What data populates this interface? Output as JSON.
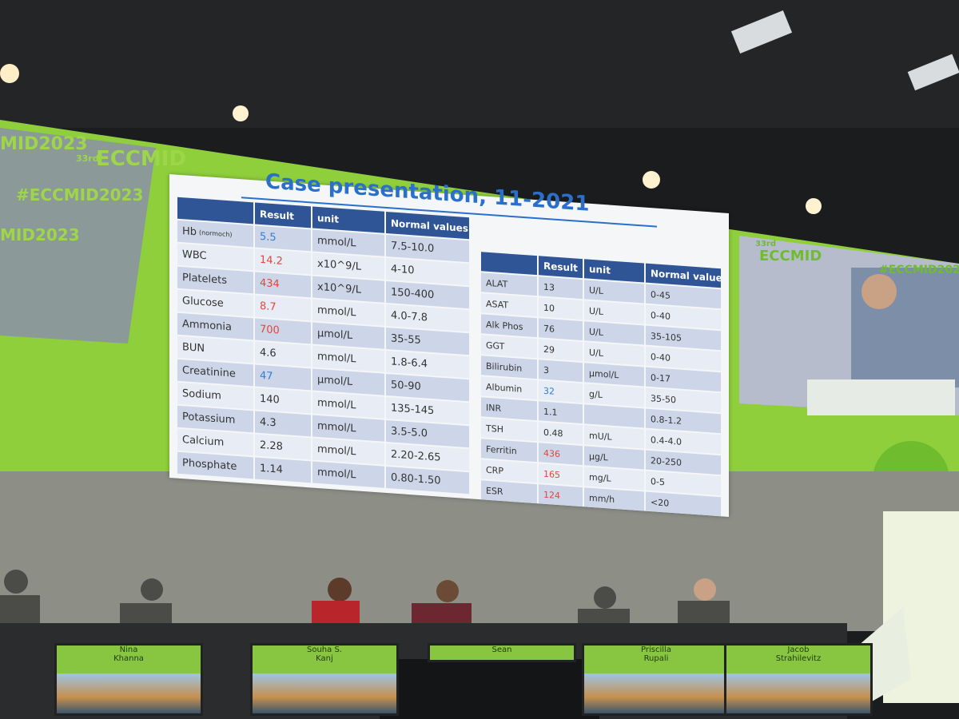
{
  "slide": {
    "title": "Case presentation, 11-2021",
    "left_table": {
      "headers": [
        "Result",
        "unit",
        "Normal values"
      ],
      "rows": [
        {
          "test": "Hb",
          "note": "(normoch)",
          "result": "5.5",
          "result_color": "#2f7fd6",
          "unit": "mmol/L",
          "normal": "7.5-10.0"
        },
        {
          "test": "WBC",
          "result": "14.2",
          "result_color": "#e0463a",
          "unit": "x10^9/L",
          "normal": "4-10"
        },
        {
          "test": "Platelets",
          "result": "434",
          "result_color": "#e0463a",
          "unit": "x10^9/L",
          "normal": "150-400"
        },
        {
          "test": "Glucose",
          "result": "8.7",
          "result_color": "#e0463a",
          "unit": "mmol/L",
          "normal": "4.0-7.8"
        },
        {
          "test": "Ammonia",
          "result": "700",
          "result_color": "#e0463a",
          "unit": "µmol/L",
          "normal": "35-55"
        },
        {
          "test": "BUN",
          "result": "4.6",
          "result_color": "#333333",
          "unit": "mmol/L",
          "normal": "1.8-6.4"
        },
        {
          "test": "Creatinine",
          "result": "47",
          "result_color": "#2f7fd6",
          "unit": "µmol/L",
          "normal": "50-90"
        },
        {
          "test": "Sodium",
          "result": "140",
          "result_color": "#333333",
          "unit": "mmol/L",
          "normal": "135-145"
        },
        {
          "test": "Potassium",
          "result": "4.3",
          "result_color": "#333333",
          "unit": "mmol/L",
          "normal": "3.5-5.0"
        },
        {
          "test": "Calcium",
          "result": "2.28",
          "result_color": "#333333",
          "unit": "mmol/L",
          "normal": "2.20-2.65"
        },
        {
          "test": "Phosphate",
          "result": "1.14",
          "result_color": "#333333",
          "unit": "mmol/L",
          "normal": "0.80-1.50"
        }
      ]
    },
    "right_table": {
      "headers": [
        "Result",
        "unit",
        "Normal values"
      ],
      "rows": [
        {
          "test": "ALAT",
          "result": "13",
          "result_color": "#333333",
          "unit": "U/L",
          "normal": "0-45"
        },
        {
          "test": "ASAT",
          "result": "10",
          "result_color": "#333333",
          "unit": "U/L",
          "normal": "0-40"
        },
        {
          "test": "Alk Phos",
          "result": "76",
          "result_color": "#333333",
          "unit": "U/L",
          "normal": "35-105"
        },
        {
          "test": "GGT",
          "result": "29",
          "result_color": "#333333",
          "unit": "U/L",
          "normal": "0-40"
        },
        {
          "test": "Bilirubin",
          "result": "3",
          "result_color": "#333333",
          "unit": "µmol/L",
          "normal": "0-17"
        },
        {
          "test": "Albumin",
          "result": "32",
          "result_color": "#2f7fd6",
          "unit": "g/L",
          "normal": "35-50"
        },
        {
          "test": "INR",
          "result": "1.1",
          "result_color": "#333333",
          "unit": null,
          "normal": "0.8-1.2"
        },
        {
          "test": "TSH",
          "result": "0.48",
          "result_color": "#333333",
          "unit": "mU/L",
          "normal": "0.4-4.0"
        },
        {
          "test": "Ferritin",
          "result": "436",
          "result_color": "#e0463a",
          "unit": "µg/L",
          "normal": "20-250"
        },
        {
          "test": "CRP",
          "result": "165",
          "result_color": "#e0463a",
          "unit": "mg/L",
          "normal": "0-5"
        },
        {
          "test": "ESR",
          "result": "124",
          "result_color": "#e0463a",
          "unit": "mm/h",
          "normal": "<20"
        }
      ]
    }
  },
  "branding": {
    "hashtag": "#ECCMID2023",
    "edition": "33rd",
    "name": "ECCMID",
    "short": "MID2023"
  },
  "nameplates": [
    {
      "first": "Nina",
      "last": "Khanna"
    },
    {
      "first": "Souha S.",
      "last": "Kanj"
    },
    {
      "first": "Sean"
    },
    {
      "first": "Priscilla",
      "last": "Rupali"
    },
    {
      "first": "Jacob",
      "last": "Strahilevitz"
    }
  ]
}
